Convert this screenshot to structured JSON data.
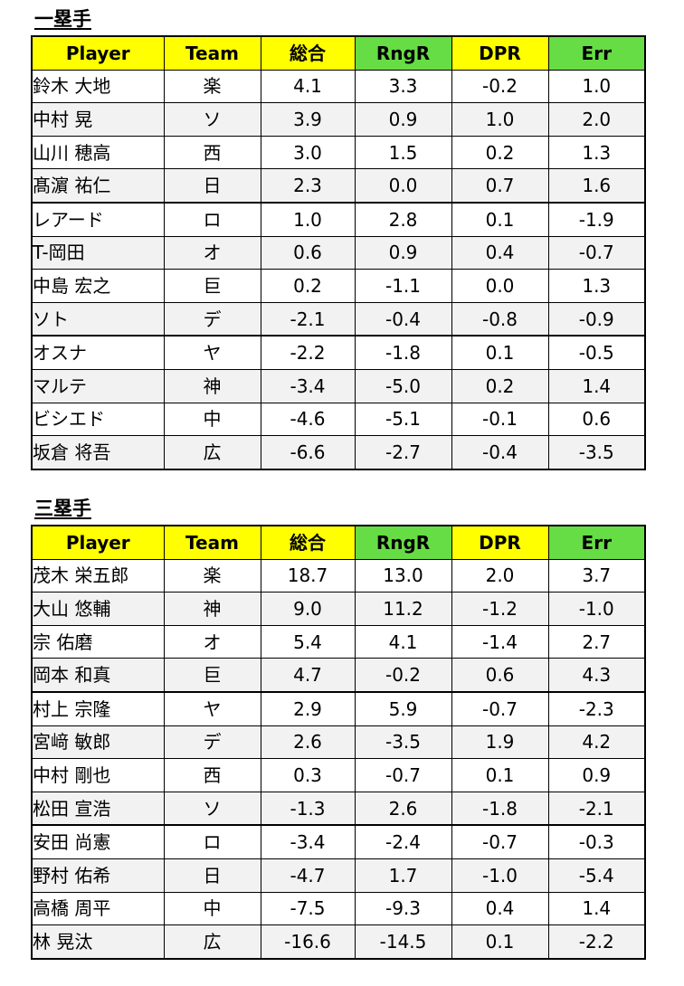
{
  "sections": [
    {
      "title": "一塁手",
      "headers": [
        "Player",
        "Team",
        "総合",
        "RngR",
        "DPR",
        "Err"
      ],
      "rows": [
        [
          "鈴木 大地",
          "楽",
          "4.1",
          "3.3",
          "-0.2",
          "1.0"
        ],
        [
          "中村 晃",
          "ソ",
          "3.9",
          "0.9",
          "1.0",
          "2.0"
        ],
        [
          "山川 穂高",
          "西",
          "3.0",
          "1.5",
          "0.2",
          "1.3"
        ],
        [
          "髙濵 祐仁",
          "日",
          "2.3",
          "0.0",
          "0.7",
          "1.6"
        ],
        [
          "レアード",
          "ロ",
          "1.0",
          "2.8",
          "0.1",
          "-1.9"
        ],
        [
          "T-岡田",
          "オ",
          "0.6",
          "0.9",
          "0.4",
          "-0.7"
        ],
        [
          "中島 宏之",
          "巨",
          "0.2",
          "-1.1",
          "0.0",
          "1.3"
        ],
        [
          "ソト",
          "デ",
          "-2.1",
          "-0.4",
          "-0.8",
          "-0.9"
        ],
        [
          "オスナ",
          "ヤ",
          "-2.2",
          "-1.8",
          "0.1",
          "-0.5"
        ],
        [
          "マルテ",
          "神",
          "-3.4",
          "-5.0",
          "0.2",
          "1.4"
        ],
        [
          "ビシエド",
          "中",
          "-4.6",
          "-5.1",
          "-0.1",
          "0.6"
        ],
        [
          "坂倉 将吾",
          "広",
          "-6.6",
          "-2.7",
          "-0.4",
          "-3.5"
        ]
      ]
    },
    {
      "title": "三塁手",
      "headers": [
        "Player",
        "Team",
        "総合",
        "RngR",
        "DPR",
        "Err"
      ],
      "rows": [
        [
          "茂木 栄五郎",
          "楽",
          "18.7",
          "13.0",
          "2.0",
          "3.7"
        ],
        [
          "大山 悠輔",
          "神",
          "9.0",
          "11.2",
          "-1.2",
          "-1.0"
        ],
        [
          "宗 佑磨",
          "オ",
          "5.4",
          "4.1",
          "-1.4",
          "2.7"
        ],
        [
          "岡本 和真",
          "巨",
          "4.7",
          "-0.2",
          "0.6",
          "4.3"
        ],
        [
          "村上 宗隆",
          "ヤ",
          "2.9",
          "5.9",
          "-0.7",
          "-2.3"
        ],
        [
          "宮﨑 敏郎",
          "デ",
          "2.6",
          "-3.5",
          "1.9",
          "4.2"
        ],
        [
          "中村 剛也",
          "西",
          "0.3",
          "-0.7",
          "0.1",
          "0.9"
        ],
        [
          "松田 宣浩",
          "ソ",
          "-1.3",
          "2.6",
          "-1.8",
          "-2.1"
        ],
        [
          "安田 尚憲",
          "ロ",
          "-3.4",
          "-2.4",
          "-0.7",
          "-0.3"
        ],
        [
          "野村 佑希",
          "日",
          "-4.7",
          "1.7",
          "-1.0",
          "-5.4"
        ],
        [
          "高橋 周平",
          "中",
          "-7.5",
          "-9.3",
          "0.4",
          "1.4"
        ],
        [
          "林 晃汰",
          "広",
          "-16.6",
          "-14.5",
          "0.1",
          "-2.2"
        ]
      ]
    }
  ],
  "colors": {
    "header_yellow": "#ffff00",
    "header_green": "#66dd44",
    "row_alt": "#f2f2f2"
  }
}
